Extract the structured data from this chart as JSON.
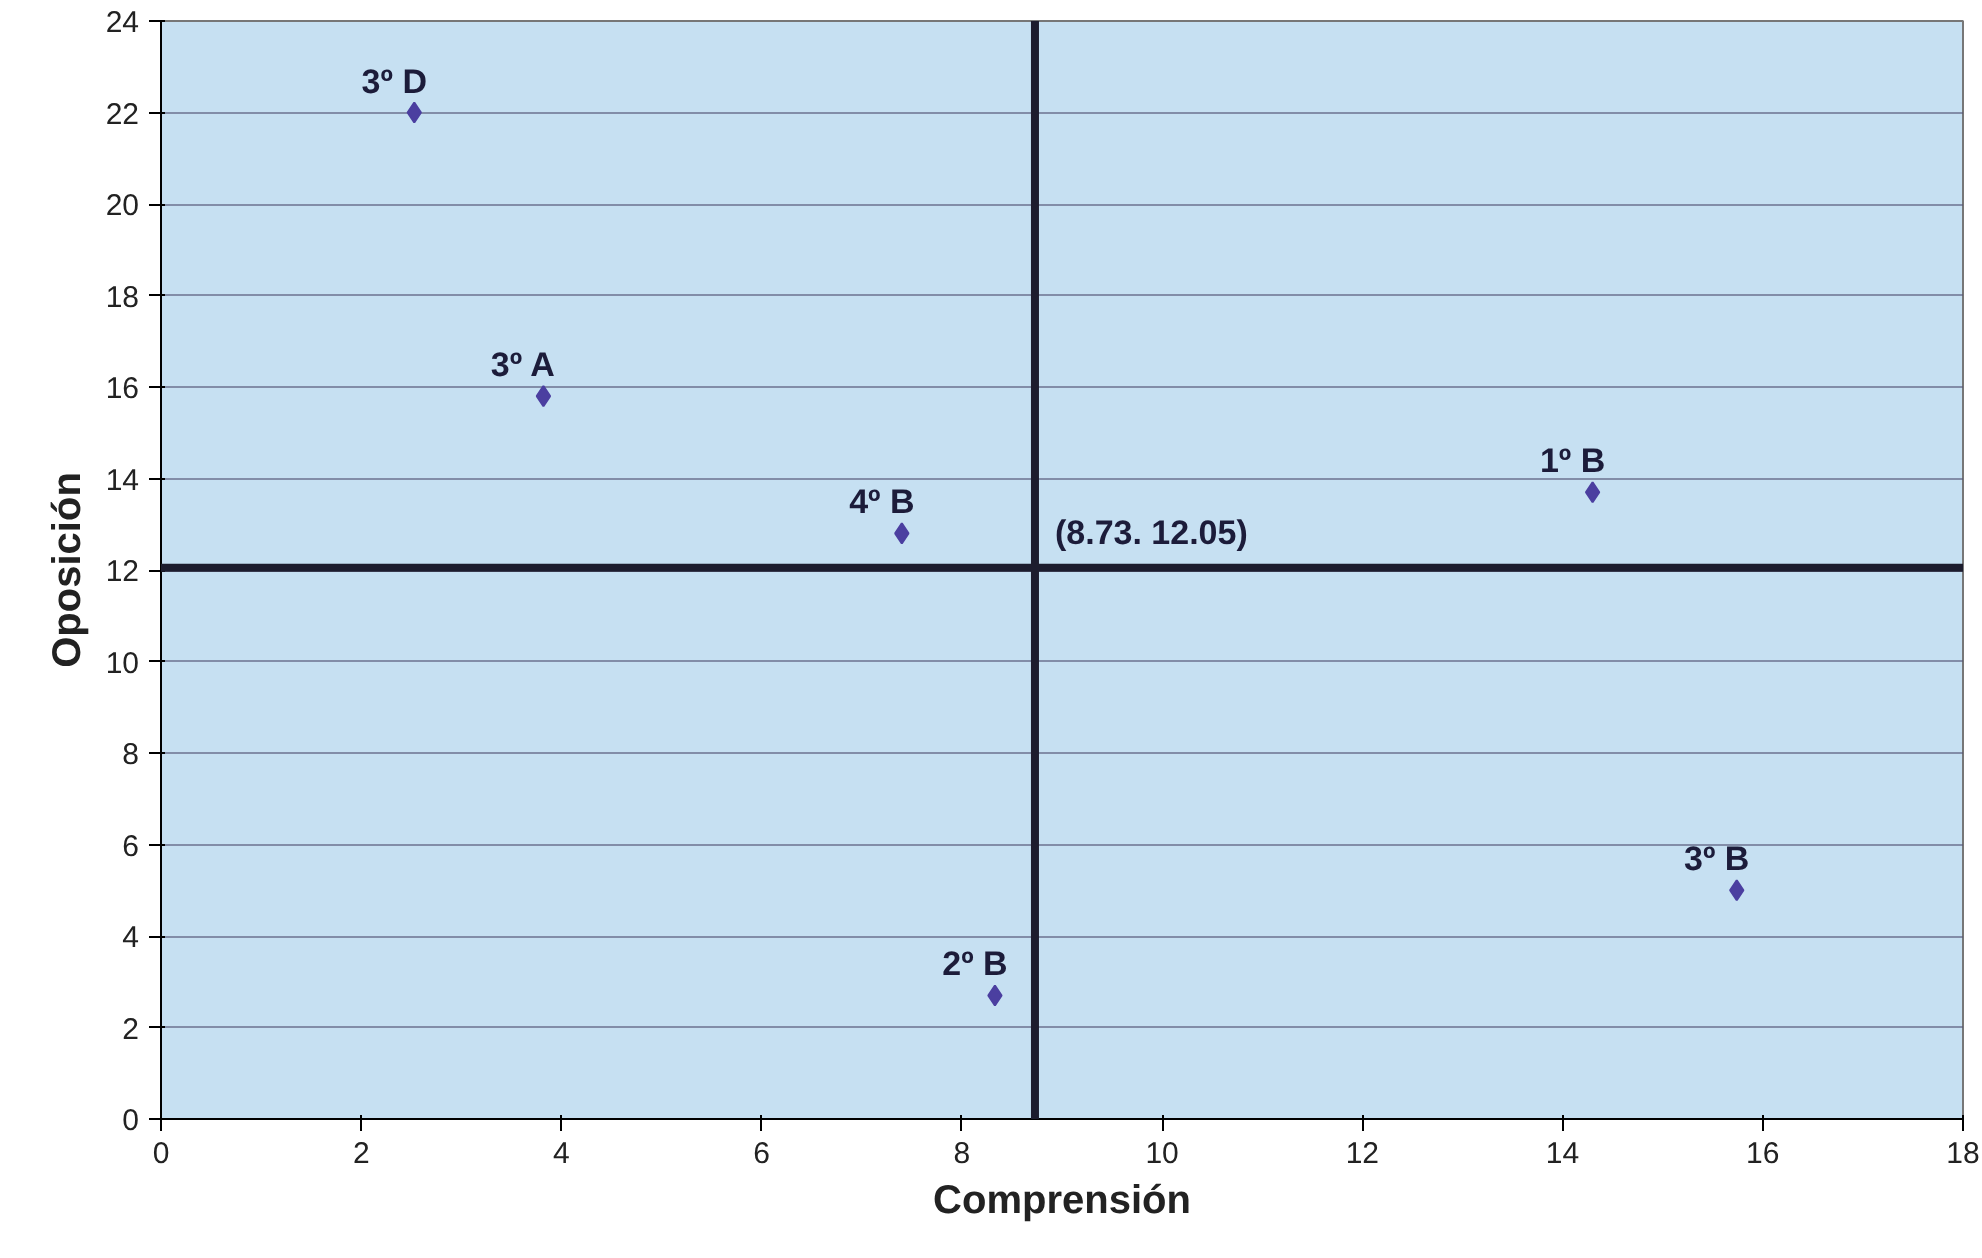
{
  "chart_data": {
    "type": "scatter",
    "xlabel": "Comprensión",
    "ylabel": "Oposición",
    "x": [
      2.53,
      3.82,
      7.4,
      14.3,
      15.74,
      8.33
    ],
    "values": [
      22.0,
      15.8,
      12.8,
      13.7,
      5.0,
      2.7
    ],
    "color": "#4b3fa0",
    "marker": "diamond",
    "grid": "y",
    "xlim": [
      0,
      18
    ],
    "xticks": [
      0,
      2,
      4,
      6,
      8,
      10,
      12,
      14,
      16,
      18
    ],
    "ylim": [
      0,
      24
    ],
    "yticks": [
      0,
      2,
      4,
      6,
      8,
      10,
      12,
      14,
      16,
      18,
      20,
      22,
      24
    ],
    "ref_lines": [
      {
        "axis": "x",
        "value": 8.73,
        "color": "#1c1c2e"
      },
      {
        "axis": "y",
        "value": 12.05,
        "color": "#1c1c2e"
      }
    ],
    "annotations": [
      {
        "text": "3º D",
        "x": 2.53,
        "y": 22.0
      },
      {
        "text": "3º A",
        "x": 3.82,
        "y": 15.8
      },
      {
        "text": "4º B",
        "x": 7.4,
        "y": 12.8
      },
      {
        "text": "1º B",
        "x": 14.3,
        "y": 13.7
      },
      {
        "text": "3º B",
        "x": 15.74,
        "y": 5.0
      },
      {
        "text": "2º B",
        "x": 8.33,
        "y": 2.7
      },
      {
        "text": "(8.73. 12.05)",
        "x": 8.73,
        "y": 12.05
      }
    ]
  }
}
